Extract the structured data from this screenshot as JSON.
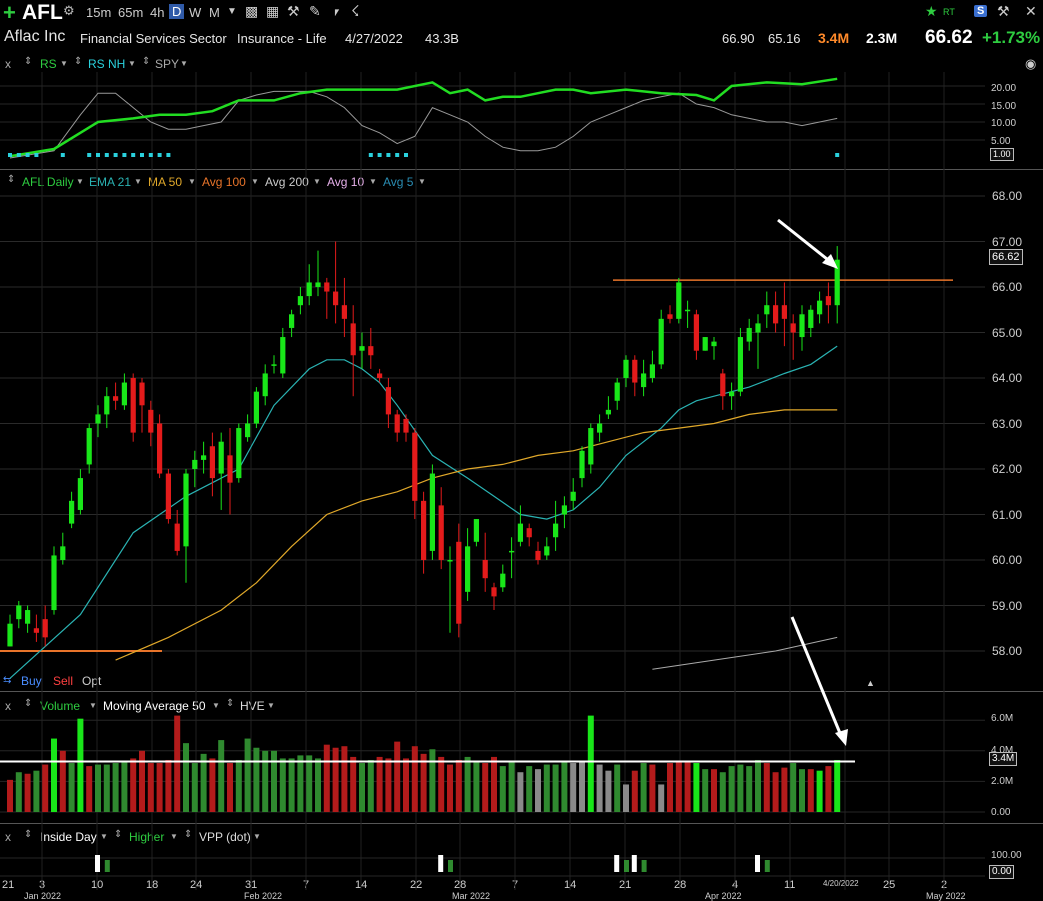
{
  "toolbar": {
    "plus_icon": "plus-icon",
    "symbol": "AFL",
    "timeframes": [
      "15m",
      "65m",
      "4h",
      "D",
      "W",
      "M"
    ],
    "active_timeframe": "D",
    "icons": [
      "gear-icon",
      "tv-icon",
      "calculator-icon",
      "pencil-icon",
      "tag-icon",
      "share-icon",
      "star-icon",
      "rt-icon",
      "s-icon",
      "wrench-icon",
      "close-icon"
    ],
    "rt_label": "RT",
    "s_label": "S"
  },
  "info": {
    "name": "Aflac Inc",
    "sector": "Financial Services Sector",
    "industry": "Insurance - Life",
    "date": "4/27/2022",
    "market_cap": "43.3B",
    "high": "66.90",
    "low": "65.16",
    "volume": "3.4M",
    "avg_volume": "2.3M",
    "last": "66.62",
    "change": "+1.73%"
  },
  "rs_panel": {
    "close": "x",
    "items": [
      "RS",
      "RS NH",
      "SPY"
    ],
    "axis": [
      "20.00",
      "15.00",
      "10.00",
      "5.00"
    ],
    "current": "1.00"
  },
  "price_panel": {
    "items": [
      "AFL Daily",
      "EMA 21",
      "MA 50",
      "Avg 100",
      "Avg 200",
      "Avg 10",
      "Avg 5"
    ],
    "axis": [
      "68.00",
      "67.00",
      "66.00",
      "65.00",
      "64.00",
      "63.00",
      "62.00",
      "61.00",
      "60.00",
      "59.00",
      "58.00"
    ],
    "current": "66.62",
    "buy": "Buy",
    "sell": "Sell",
    "opt": "Opt"
  },
  "volume_panel": {
    "close": "x",
    "items": [
      "Volume",
      "Moving Average 50",
      "HVE"
    ],
    "axis": [
      "6.0M",
      "4.0M",
      "2.0M",
      "0.00"
    ],
    "current": "3.4M"
  },
  "pattern_panel": {
    "close": "x",
    "items": [
      "Inside Day",
      "Higher",
      "VPP (dot)"
    ],
    "axis": [
      "100.00"
    ],
    "current": "0.00"
  },
  "x_axis": {
    "labels": [
      "21",
      "3",
      "10",
      "18",
      "24",
      "31",
      "7",
      "14",
      "22",
      "28",
      "7",
      "14",
      "21",
      "28",
      "4",
      "11",
      "4/20/2022",
      "25",
      "2"
    ],
    "months": [
      "Jan 2022",
      "Feb 2022",
      "Mar 2022",
      "Apr 2022",
      "May 2022"
    ]
  },
  "colors": {
    "up": "#19e619",
    "down": "#e41b1b",
    "ema21": "#2ab3b3",
    "ma50": "#e0a82a",
    "resistance": "#e8742a",
    "rs": "#22dd22",
    "spy": "#999999"
  },
  "chart_data": {
    "type": "candlestick",
    "ylim": [
      57.5,
      68.3
    ],
    "candles": [
      [
        58.1,
        58.6,
        58.1,
        58.8
      ],
      [
        58.7,
        59.0,
        58.5,
        59.1
      ],
      [
        58.6,
        58.9,
        58.4,
        59.0
      ],
      [
        58.5,
        58.4,
        58.2,
        58.8
      ],
      [
        58.7,
        58.3,
        58.1,
        59.0
      ],
      [
        58.9,
        60.1,
        58.8,
        60.3
      ],
      [
        60.0,
        60.3,
        59.9,
        60.6
      ],
      [
        60.8,
        61.3,
        60.7,
        61.5
      ],
      [
        61.1,
        61.8,
        61.0,
        62.0
      ],
      [
        62.1,
        62.9,
        61.9,
        63.0
      ],
      [
        63.0,
        63.2,
        62.7,
        63.4
      ],
      [
        63.2,
        63.6,
        62.9,
        63.8
      ],
      [
        63.6,
        63.5,
        63.3,
        63.9
      ],
      [
        63.4,
        63.9,
        63.3,
        64.1
      ],
      [
        64.0,
        62.8,
        62.6,
        64.1
      ],
      [
        63.9,
        63.4,
        62.8,
        64.0
      ],
      [
        63.3,
        62.8,
        62.5,
        63.5
      ],
      [
        63.0,
        61.9,
        61.8,
        63.2
      ],
      [
        61.9,
        60.9,
        60.8,
        62.0
      ],
      [
        60.8,
        60.2,
        60.1,
        61.1
      ],
      [
        60.3,
        61.9,
        59.5,
        62.0
      ],
      [
        62.0,
        62.2,
        61.6,
        62.4
      ],
      [
        62.2,
        62.3,
        61.9,
        62.6
      ],
      [
        62.5,
        61.8,
        61.4,
        62.8
      ],
      [
        61.9,
        62.6,
        61.1,
        62.8
      ],
      [
        62.3,
        61.7,
        61.0,
        62.9
      ],
      [
        61.8,
        62.9,
        61.7,
        63.0
      ],
      [
        62.7,
        63.0,
        62.6,
        63.2
      ],
      [
        63.0,
        63.7,
        62.9,
        63.8
      ],
      [
        63.6,
        64.1,
        63.4,
        64.3
      ],
      [
        64.3,
        64.3,
        64.1,
        64.5
      ],
      [
        64.1,
        64.9,
        64.0,
        65.1
      ],
      [
        65.1,
        65.4,
        64.9,
        65.5
      ],
      [
        65.6,
        65.8,
        65.4,
        66.0
      ],
      [
        65.8,
        66.1,
        65.6,
        66.5
      ],
      [
        66.0,
        66.1,
        65.8,
        66.8
      ],
      [
        66.1,
        65.9,
        65.3,
        66.2
      ],
      [
        65.9,
        65.6,
        65.2,
        67.0
      ],
      [
        65.6,
        65.3,
        64.9,
        66.2
      ],
      [
        65.2,
        64.5,
        63.6,
        65.6
      ],
      [
        64.6,
        64.7,
        64.2,
        65.0
      ],
      [
        64.7,
        64.5,
        64.2,
        65.1
      ],
      [
        64.1,
        64.0,
        63.9,
        64.2
      ],
      [
        63.8,
        63.2,
        62.9,
        64.0
      ],
      [
        63.2,
        62.8,
        62.6,
        63.3
      ],
      [
        63.1,
        62.8,
        62.6,
        63.2
      ],
      [
        62.8,
        61.3,
        60.9,
        62.9
      ],
      [
        61.3,
        60.0,
        59.7,
        61.5
      ],
      [
        60.2,
        61.9,
        60.0,
        62.1
      ],
      [
        61.2,
        60.0,
        59.8,
        61.6
      ],
      [
        60.0,
        60.0,
        58.4,
        60.3
      ],
      [
        60.4,
        58.6,
        58.3,
        60.8
      ],
      [
        59.3,
        60.3,
        59.1,
        60.7
      ],
      [
        60.4,
        60.9,
        60.3,
        60.9
      ],
      [
        60.0,
        59.6,
        59.3,
        60.6
      ],
      [
        59.4,
        59.2,
        58.9,
        59.5
      ],
      [
        59.4,
        59.7,
        59.3,
        59.9
      ],
      [
        60.2,
        60.2,
        59.6,
        60.5
      ],
      [
        60.4,
        60.8,
        60.3,
        61.2
      ],
      [
        60.7,
        60.5,
        60.3,
        60.8
      ],
      [
        60.2,
        60.0,
        59.9,
        60.4
      ],
      [
        60.1,
        60.3,
        60.0,
        60.5
      ],
      [
        60.5,
        60.8,
        60.2,
        61.3
      ],
      [
        61.0,
        61.2,
        60.7,
        61.4
      ],
      [
        61.3,
        61.5,
        61.1,
        61.8
      ],
      [
        61.8,
        62.4,
        61.6,
        62.5
      ],
      [
        62.1,
        62.9,
        61.9,
        63.0
      ],
      [
        62.8,
        63.0,
        62.6,
        63.2
      ],
      [
        63.2,
        63.3,
        63.1,
        63.6
      ],
      [
        63.5,
        63.9,
        63.3,
        64.0
      ],
      [
        64.0,
        64.4,
        63.8,
        64.5
      ],
      [
        64.4,
        63.9,
        63.6,
        64.5
      ],
      [
        63.8,
        64.1,
        63.6,
        64.4
      ],
      [
        64.0,
        64.3,
        63.9,
        64.6
      ],
      [
        64.3,
        65.3,
        64.2,
        65.5
      ],
      [
        65.4,
        65.3,
        65.2,
        65.6
      ],
      [
        65.3,
        66.1,
        65.2,
        66.2
      ],
      [
        65.5,
        65.5,
        65.1,
        65.7
      ],
      [
        65.4,
        64.6,
        64.4,
        65.5
      ],
      [
        64.6,
        64.9,
        64.6,
        64.9
      ],
      [
        64.7,
        64.8,
        64.4,
        64.9
      ],
      [
        64.1,
        63.6,
        63.3,
        64.2
      ],
      [
        63.6,
        63.7,
        63.3,
        63.9
      ],
      [
        63.7,
        64.9,
        63.6,
        65.1
      ],
      [
        64.8,
        65.1,
        64.6,
        65.3
      ],
      [
        65.0,
        65.2,
        64.2,
        65.4
      ],
      [
        65.4,
        65.6,
        65.1,
        65.9
      ],
      [
        65.6,
        65.2,
        65.0,
        65.9
      ],
      [
        65.6,
        65.3,
        64.7,
        66.1
      ],
      [
        65.2,
        65.0,
        64.4,
        65.4
      ],
      [
        64.9,
        65.4,
        64.6,
        65.6
      ],
      [
        65.1,
        65.5,
        64.9,
        65.6
      ],
      [
        65.4,
        65.7,
        65.2,
        65.9
      ],
      [
        65.8,
        65.6,
        65.2,
        66.1
      ],
      [
        65.6,
        66.6,
        65.2,
        66.9
      ]
    ],
    "resistance": 66.15,
    "ema21": [
      [
        0,
        57.4
      ],
      [
        8,
        58.8
      ],
      [
        14,
        60.6
      ],
      [
        20,
        61.4
      ],
      [
        26,
        62.0
      ],
      [
        30,
        63.4
      ],
      [
        34,
        64.2
      ],
      [
        36,
        64.4
      ],
      [
        38,
        64.4
      ],
      [
        40,
        64.2
      ],
      [
        42,
        63.9
      ],
      [
        44,
        63.4
      ],
      [
        48,
        62.3
      ],
      [
        52,
        61.8
      ],
      [
        55,
        61.4
      ],
      [
        58,
        61.0
      ],
      [
        61,
        60.9
      ],
      [
        64,
        61.1
      ],
      [
        67,
        61.6
      ],
      [
        70,
        62.3
      ],
      [
        74,
        62.9
      ],
      [
        76,
        63.3
      ],
      [
        78,
        63.5
      ],
      [
        80,
        63.6
      ],
      [
        84,
        63.8
      ],
      [
        88,
        64.1
      ],
      [
        91,
        64.3
      ],
      [
        94,
        64.7
      ]
    ],
    "ma50": [
      [
        12,
        57.8
      ],
      [
        18,
        58.3
      ],
      [
        24,
        58.9
      ],
      [
        28,
        59.5
      ],
      [
        32,
        60.3
      ],
      [
        36,
        61.0
      ],
      [
        40,
        61.3
      ],
      [
        44,
        61.5
      ],
      [
        48,
        61.8
      ],
      [
        52,
        62.0
      ],
      [
        56,
        62.1
      ],
      [
        60,
        62.3
      ],
      [
        64,
        62.4
      ],
      [
        68,
        62.6
      ],
      [
        72,
        62.8
      ],
      [
        76,
        62.9
      ],
      [
        80,
        63.0
      ],
      [
        84,
        63.2
      ],
      [
        88,
        63.3
      ],
      [
        94,
        63.3
      ]
    ],
    "ma200": [
      [
        73,
        57.6
      ],
      [
        80,
        57.8
      ],
      [
        87,
        58.0
      ],
      [
        94,
        58.3
      ]
    ],
    "volume": [
      2.1,
      2.6,
      2.5,
      2.7,
      3.1,
      4.8,
      4.0,
      3.2,
      6.1,
      3.0,
      3.1,
      3.1,
      3.2,
      3.3,
      3.5,
      4.0,
      3.2,
      3.2,
      3.4,
      6.3,
      4.5,
      3.2,
      3.8,
      3.5,
      4.7,
      3.2,
      3.4,
      4.8,
      4.2,
      4.0,
      4.0,
      3.5,
      3.5,
      3.7,
      3.7,
      3.5,
      4.4,
      4.2,
      4.3,
      3.6,
      3.2,
      3.4,
      3.6,
      3.5,
      4.6,
      3.5,
      4.3,
      3.8,
      4.1,
      3.6,
      3.1,
      3.4,
      3.6,
      3.3,
      3.2,
      3.6,
      3.0,
      3.3,
      2.6,
      3.0,
      2.8,
      3.1,
      3.1,
      3.3,
      3.2,
      3.3,
      6.3,
      3.1,
      2.7,
      3.1,
      1.8,
      2.7,
      3.2,
      3.1,
      1.8,
      3.2,
      3.3,
      3.3,
      3.2,
      2.8,
      2.8,
      2.6,
      3.0,
      3.1,
      3.0,
      3.4,
      3.2,
      2.6,
      2.9,
      3.2,
      2.8,
      2.8,
      2.7,
      3.0,
      3.4
    ],
    "volume_colors": [
      "dkred",
      "dkgreen",
      "dkred",
      "dkgreen",
      "dkred",
      "green",
      "dkred",
      "dkgreen",
      "green",
      "dkred",
      "dkgreen",
      "dkgreen",
      "dkgreen",
      "dkgreen",
      "dkred",
      "dkred",
      "dkred",
      "dkred",
      "dkred",
      "dkred",
      "dkgreen",
      "dkgreen",
      "dkgreen",
      "dkred",
      "dkgreen",
      "dkred",
      "dkgreen",
      "dkgreen",
      "dkgreen",
      "dkgreen",
      "dkgreen",
      "dkgreen",
      "dkgreen",
      "dkgreen",
      "dkgreen",
      "dkgreen",
      "dkred",
      "dkred",
      "dkred",
      "dkred",
      "dkgreen",
      "dkgreen",
      "dkred",
      "dkred",
      "dkred",
      "dkred",
      "dkred",
      "dkred",
      "dkgreen",
      "dkred",
      "dkred",
      "dkred",
      "dkgreen",
      "dkgreen",
      "dkred",
      "dkred",
      "dkgreen",
      "dkgreen",
      "gray",
      "dkgreen",
      "gray",
      "dkgreen",
      "dkgreen",
      "dkgreen",
      "gray",
      "gray",
      "green",
      "gray",
      "gray",
      "dkgreen",
      "gray",
      "dkred",
      "dkgreen",
      "dkred",
      "gray",
      "dkred",
      "dkred",
      "dkred",
      "green",
      "dkgreen",
      "dkred",
      "dkgreen",
      "dkgreen",
      "dkgreen",
      "dkgreen",
      "dkgreen",
      "dkred",
      "dkred",
      "dkred",
      "dkgreen",
      "dkgreen",
      "dkred",
      "green",
      "dkred",
      "green"
    ],
    "volume_ma": 3.3,
    "vol_ylim": [
      0,
      6.5
    ],
    "rs": [
      [
        0,
        0.5
      ],
      [
        5,
        2.5
      ],
      [
        10,
        10.0
      ],
      [
        14,
        11.0
      ],
      [
        17,
        12.0
      ],
      [
        20,
        12.0
      ],
      [
        23,
        13.0
      ],
      [
        26,
        16.0
      ],
      [
        30,
        16.0
      ],
      [
        33,
        18.0
      ],
      [
        36,
        19.0
      ],
      [
        40,
        19.0
      ],
      [
        44,
        19.0
      ],
      [
        48,
        21.0
      ],
      [
        50,
        18.0
      ],
      [
        52,
        19.0
      ],
      [
        54,
        16.0
      ],
      [
        56,
        17.0
      ],
      [
        58,
        17.0
      ],
      [
        60,
        18.0
      ],
      [
        62,
        19.0
      ],
      [
        64,
        19.0
      ],
      [
        66,
        18.0
      ],
      [
        70,
        19.0
      ],
      [
        74,
        18.0
      ],
      [
        78,
        17.5
      ],
      [
        80,
        16.0
      ],
      [
        82,
        20.0
      ],
      [
        86,
        21.0
      ],
      [
        90,
        20.5
      ],
      [
        94,
        22.0
      ]
    ],
    "spy": [
      [
        0,
        0.0
      ],
      [
        5,
        2.0
      ],
      [
        8,
        12.0
      ],
      [
        10,
        18.0
      ],
      [
        12,
        18.0
      ],
      [
        14,
        14.0
      ],
      [
        16,
        10.0
      ],
      [
        18,
        8.0
      ],
      [
        20,
        8.0
      ],
      [
        24,
        10.0
      ],
      [
        26,
        16.0
      ],
      [
        28,
        17.5
      ],
      [
        30,
        18.5
      ],
      [
        34,
        18.5
      ],
      [
        36,
        17.0
      ],
      [
        38,
        14.0
      ],
      [
        40,
        9.0
      ],
      [
        42,
        7.0
      ],
      [
        44,
        4.0
      ],
      [
        46,
        6.0
      ],
      [
        48,
        14.0
      ],
      [
        50,
        12.0
      ],
      [
        52,
        10.0
      ],
      [
        54,
        6.0
      ],
      [
        56,
        3.0
      ],
      [
        58,
        2.0
      ],
      [
        60,
        2.0
      ],
      [
        62,
        3.0
      ],
      [
        64,
        6.0
      ],
      [
        66,
        10.0
      ],
      [
        68,
        12.0
      ],
      [
        70,
        14.0
      ],
      [
        72,
        16.0
      ],
      [
        74,
        17.0
      ],
      [
        76,
        18.0
      ],
      [
        78,
        15.0
      ],
      [
        80,
        14.0
      ],
      [
        82,
        12.0
      ],
      [
        84,
        11.0
      ],
      [
        86,
        10.0
      ],
      [
        88,
        10.0
      ],
      [
        90,
        9.0
      ],
      [
        92,
        10.0
      ],
      [
        94,
        11.0
      ]
    ],
    "rs_nh_dots": [
      0,
      1,
      2,
      3,
      6,
      9,
      10,
      11,
      12,
      13,
      14,
      15,
      16,
      17,
      18,
      41,
      42,
      43,
      44,
      45,
      94
    ],
    "inside_days": [
      10,
      49,
      69,
      71,
      85
    ],
    "higher_days": [
      11,
      50,
      70,
      72,
      86
    ]
  }
}
